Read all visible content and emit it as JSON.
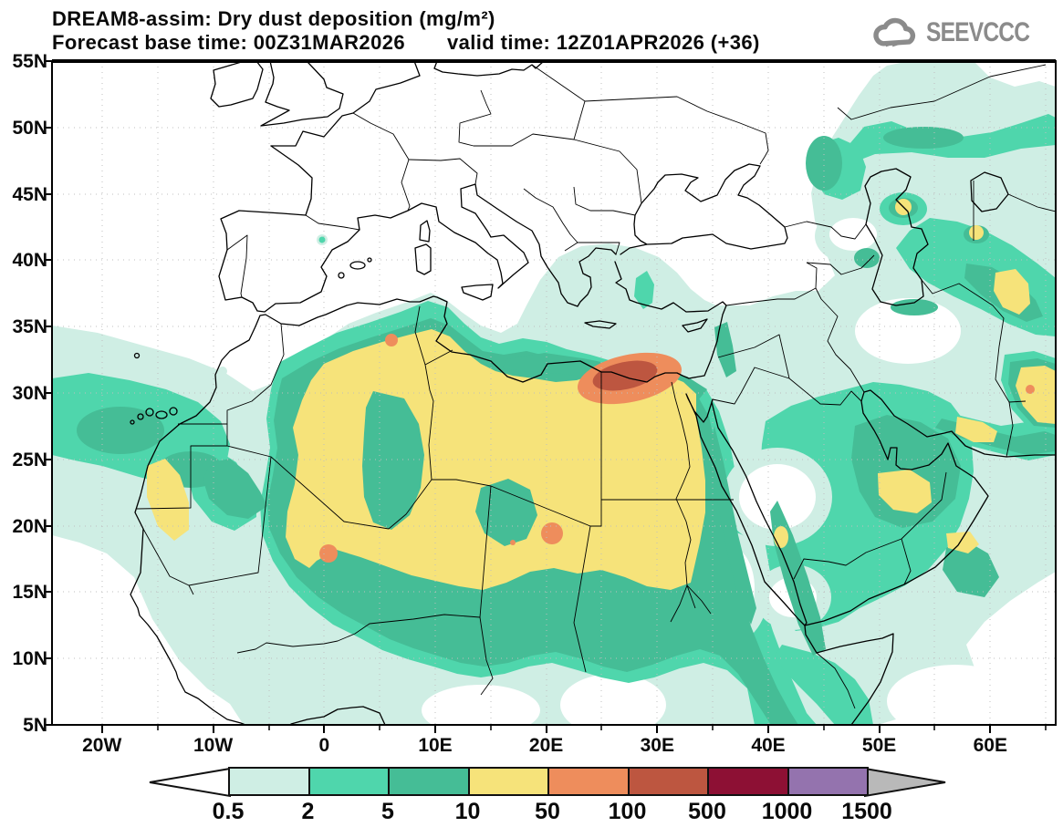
{
  "header": {
    "title": "DREAM8-assim: Dry dust deposition (mg/m²)",
    "forecast_base": "Forecast base time: 00Z31MAR2026",
    "valid_time": "valid time: 12Z01APR2026 (+36)"
  },
  "logo": {
    "text": "SEEVCCC"
  },
  "map": {
    "lat_labels": [
      "55N",
      "50N",
      "45N",
      "40N",
      "35N",
      "30N",
      "25N",
      "20N",
      "15N",
      "10N",
      "5N"
    ],
    "lon_labels": [
      "20W",
      "10W",
      "0",
      "10E",
      "20E",
      "30E",
      "40E",
      "50E",
      "60E"
    ]
  },
  "legend": {
    "values": [
      "0.5",
      "2",
      "5",
      "10",
      "50",
      "100",
      "500",
      "1000",
      "1500"
    ],
    "colors": [
      "#cfeee4",
      "#4fd6ac",
      "#45bd96",
      "#f6e37a",
      "#ee8d5c",
      "#bd5640",
      "#8d1034",
      "#9473ae"
    ],
    "left_arrow_color": "#ffffff",
    "right_arrow_color": "#b9b9b9"
  }
}
